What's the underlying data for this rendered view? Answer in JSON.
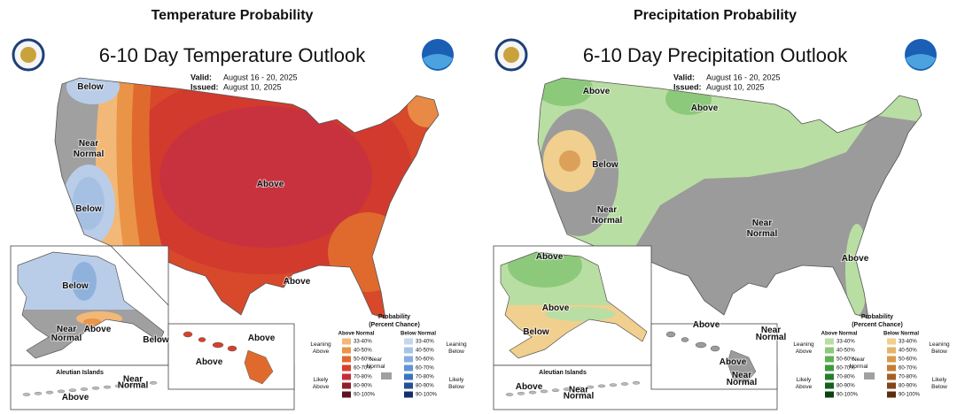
{
  "panels": [
    {
      "heading": "Temperature Probability",
      "title": "6-10 Day Temperature Outlook",
      "valid_label": "Valid:",
      "valid": "August 16 - 20, 2025",
      "issued_label": "Issued:",
      "issued": "August 10, 2025",
      "labels": [
        "Below",
        "Near Normal",
        "Below",
        "Above",
        "Above"
      ],
      "alaska_labels": [
        "Below",
        "Near Normal",
        "Above",
        "Below"
      ],
      "hawaii_labels": [
        "Above",
        "Above"
      ],
      "aleutian_title": "Aleutian Islands",
      "aleutian_labels": [
        "Near Normal",
        "Above"
      ],
      "legend": {
        "title": "Probability",
        "subtitle": "(Percent Chance)",
        "above_header": "Above Normal",
        "below_header": "Below Normal",
        "near": "Near Normal",
        "leaning_above": "Leaning Above",
        "likely_above": "Likely Above",
        "leaning_below": "Leaning Below",
        "likely_below": "Likely Below",
        "ranges": [
          "33-40%",
          "40-50%",
          "50-60%",
          "60-70%",
          "70-80%",
          "80-90%",
          "90-100%"
        ],
        "above_colors": [
          "#f2b877",
          "#ea9448",
          "#e06a2e",
          "#d8402b",
          "#c32d3a",
          "#8e1f2c",
          "#5a1420"
        ],
        "below_colors": [
          "#c6d6ec",
          "#a9c3e6",
          "#86afdf",
          "#5d95d3",
          "#3a74c0",
          "#22509a",
          "#142f6b"
        ],
        "near_color": "#a0a0a0"
      }
    },
    {
      "heading": "Precipitation Probability",
      "title": "6-10 Day Precipitation Outlook",
      "valid_label": "Valid:",
      "valid": "August 16 - 20, 2025",
      "issued_label": "Issued:",
      "issued": "August 10, 2025",
      "labels": [
        "Above",
        "Above",
        "Below",
        "Near Normal",
        "Near Normal",
        "Above"
      ],
      "alaska_labels": [
        "Above",
        "Above",
        "Below"
      ],
      "hawaii_labels": [
        "Above",
        "Near Normal",
        "Above",
        "Near Normal"
      ],
      "aleutian_title": "Aleutian Islands",
      "aleutian_labels": [
        "Above",
        "Near Normal"
      ],
      "legend": {
        "title": "Probability",
        "subtitle": "(Percent Chance)",
        "above_header": "Above Normal",
        "below_header": "Below Normal",
        "near": "Near Normal",
        "leaning_above": "Leaning Above",
        "likely_above": "Likely Above",
        "leaning_below": "Leaning Below",
        "likely_below": "Likely Below",
        "ranges": [
          "33-40%",
          "40-50%",
          "50-60%",
          "60-70%",
          "70-80%",
          "80-90%",
          "90-100%"
        ],
        "above_colors": [
          "#b9dea3",
          "#8dc97a",
          "#5fb253",
          "#3d9a3d",
          "#267e2c",
          "#15601f",
          "#0b4214"
        ],
        "below_colors": [
          "#f1cf8e",
          "#e6b36b",
          "#d89a4c",
          "#c47c36",
          "#a65f26",
          "#834419",
          "#5c2d10"
        ],
        "near_color": "#a0a0a0"
      }
    }
  ]
}
